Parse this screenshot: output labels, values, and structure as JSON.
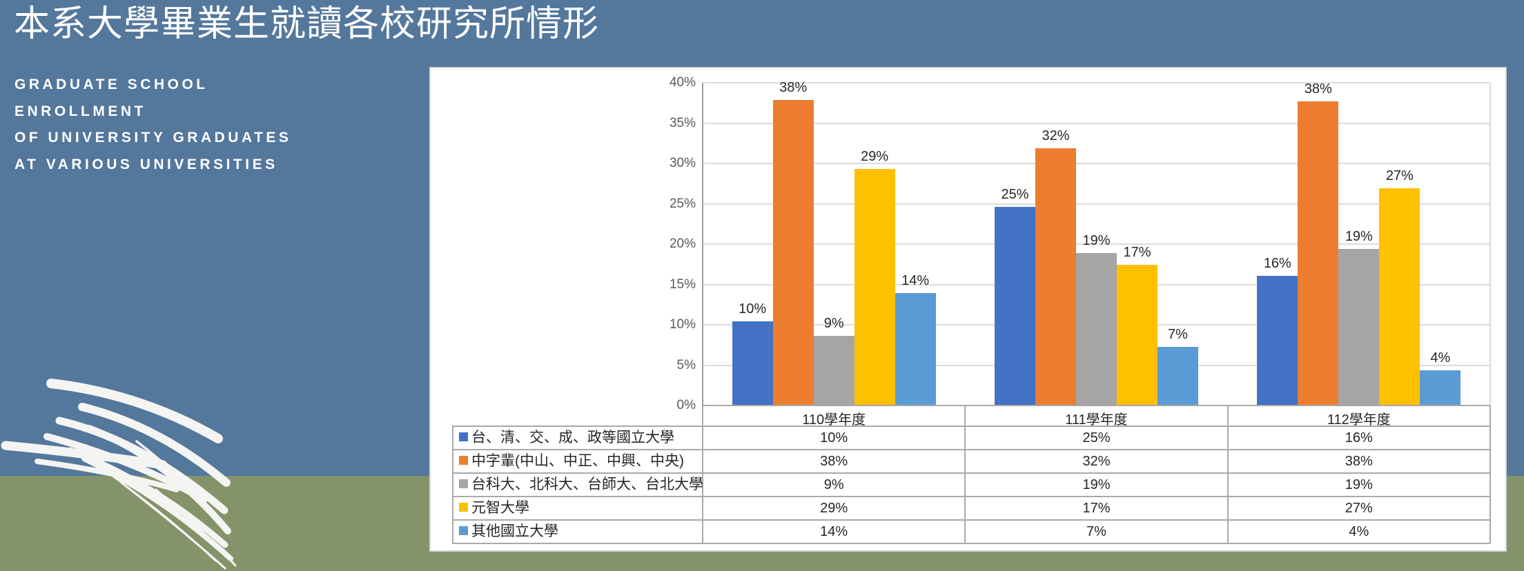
{
  "slide": {
    "title": "本系大學畢業生就讀各校研究所情形",
    "subtitle_lines": [
      "GRADUATE SCHOOL",
      "ENROLLMENT",
      "OF UNIVERSITY GRADUATES",
      "AT VARIOUS UNIVERSITIES"
    ]
  },
  "colors": {
    "background_top": "#54779C",
    "background_bottom": "#85936A",
    "panel_background": "#FFFFFF",
    "panel_border": "#D5D5D5",
    "gridline": "#DCDCDC",
    "axis_line": "#9B9B9B",
    "table_border": "#A9A9A9",
    "tick_text": "#595959",
    "label_text": "#262626",
    "grass": "#F4F4F2"
  },
  "chart_data": {
    "type": "bar",
    "title": "",
    "xlabel": "",
    "ylabel": "",
    "grid": true,
    "legend_position": "data-table-left",
    "y_axis": {
      "min": 0,
      "max": 40,
      "step": 5,
      "ticks": [
        "0%",
        "5%",
        "10%",
        "15%",
        "20%",
        "25%",
        "30%",
        "35%",
        "40%"
      ]
    },
    "categories": [
      "110學年度",
      "111學年度",
      "112學年度"
    ],
    "series": [
      {
        "name": "台、清、交、成、政等國立大學",
        "color": "#4472C4",
        "values": [
          10,
          25,
          16
        ],
        "labels": [
          "10%",
          "25%",
          "16%"
        ],
        "bar_heights_pct": [
          10.4,
          24.6,
          16.1
        ]
      },
      {
        "name": "中字輩(中山、中正、中興、中央)",
        "color": "#ED7D31",
        "values": [
          38,
          32,
          38
        ],
        "labels": [
          "38%",
          "32%",
          "38%"
        ],
        "bar_heights_pct": [
          37.9,
          31.9,
          37.7
        ]
      },
      {
        "name": "台科大、北科大、台師大、台北大學",
        "color": "#A5A5A5",
        "values": [
          9,
          19,
          19
        ],
        "labels": [
          "9%",
          "19%",
          "19%"
        ],
        "bar_heights_pct": [
          8.6,
          18.9,
          19.4
        ]
      },
      {
        "name": "元智大學",
        "color": "#FFC000",
        "values": [
          29,
          17,
          27
        ],
        "labels": [
          "29%",
          "17%",
          "27%"
        ],
        "bar_heights_pct": [
          29.3,
          17.4,
          26.9
        ]
      },
      {
        "name": "其他國立大學",
        "color": "#5B9BD5",
        "values": [
          14,
          7,
          4
        ],
        "labels": [
          "14%",
          "7%",
          "4%"
        ],
        "bar_heights_pct": [
          13.9,
          7.3,
          4.4
        ]
      }
    ]
  }
}
